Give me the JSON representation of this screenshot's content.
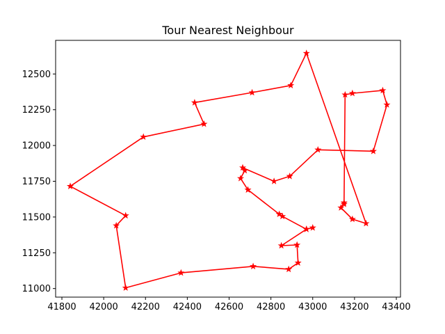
{
  "chart_data": {
    "type": "line",
    "title": "Tour Nearest Neighbour",
    "xlabel": "",
    "ylabel": "",
    "xlim": [
      41770,
      43420
    ],
    "ylim": [
      10940,
      12735
    ],
    "grid": false,
    "x_ticks": [
      41800,
      42000,
      42200,
      42400,
      42600,
      42800,
      43000,
      43200,
      43400
    ],
    "y_ticks": [
      11000,
      11250,
      11500,
      11750,
      12000,
      12250,
      12500
    ],
    "series": [
      {
        "color": "#ff0000",
        "marker": "star",
        "points": [
          [
            43000,
            11425
          ],
          [
            42970,
            11415
          ],
          [
            42855,
            11505
          ],
          [
            42840,
            11520
          ],
          [
            42690,
            11690
          ],
          [
            42655,
            11770
          ],
          [
            42675,
            11825
          ],
          [
            42665,
            11845
          ],
          [
            42815,
            11750
          ],
          [
            42890,
            11785
          ],
          [
            43025,
            11970
          ],
          [
            43290,
            11960
          ],
          [
            43355,
            12285
          ],
          [
            43335,
            12385
          ],
          [
            43190,
            12365
          ],
          [
            43155,
            12355
          ],
          [
            43150,
            11590
          ],
          [
            43150,
            11600
          ],
          [
            43135,
            11565
          ],
          [
            43190,
            11485
          ],
          [
            43255,
            11455
          ],
          [
            42970,
            12645
          ],
          [
            42895,
            12420
          ],
          [
            42710,
            12370
          ],
          [
            42435,
            12300
          ],
          [
            42480,
            12150
          ],
          [
            42190,
            12060
          ],
          [
            41840,
            11715
          ],
          [
            42105,
            11510
          ],
          [
            42060,
            11440
          ],
          [
            42105,
            11005
          ],
          [
            42370,
            11110
          ],
          [
            42715,
            11155
          ],
          [
            42885,
            11135
          ],
          [
            42930,
            11180
          ],
          [
            42925,
            11305
          ],
          [
            42850,
            11300
          ],
          [
            42970,
            11415
          ]
        ]
      }
    ]
  }
}
